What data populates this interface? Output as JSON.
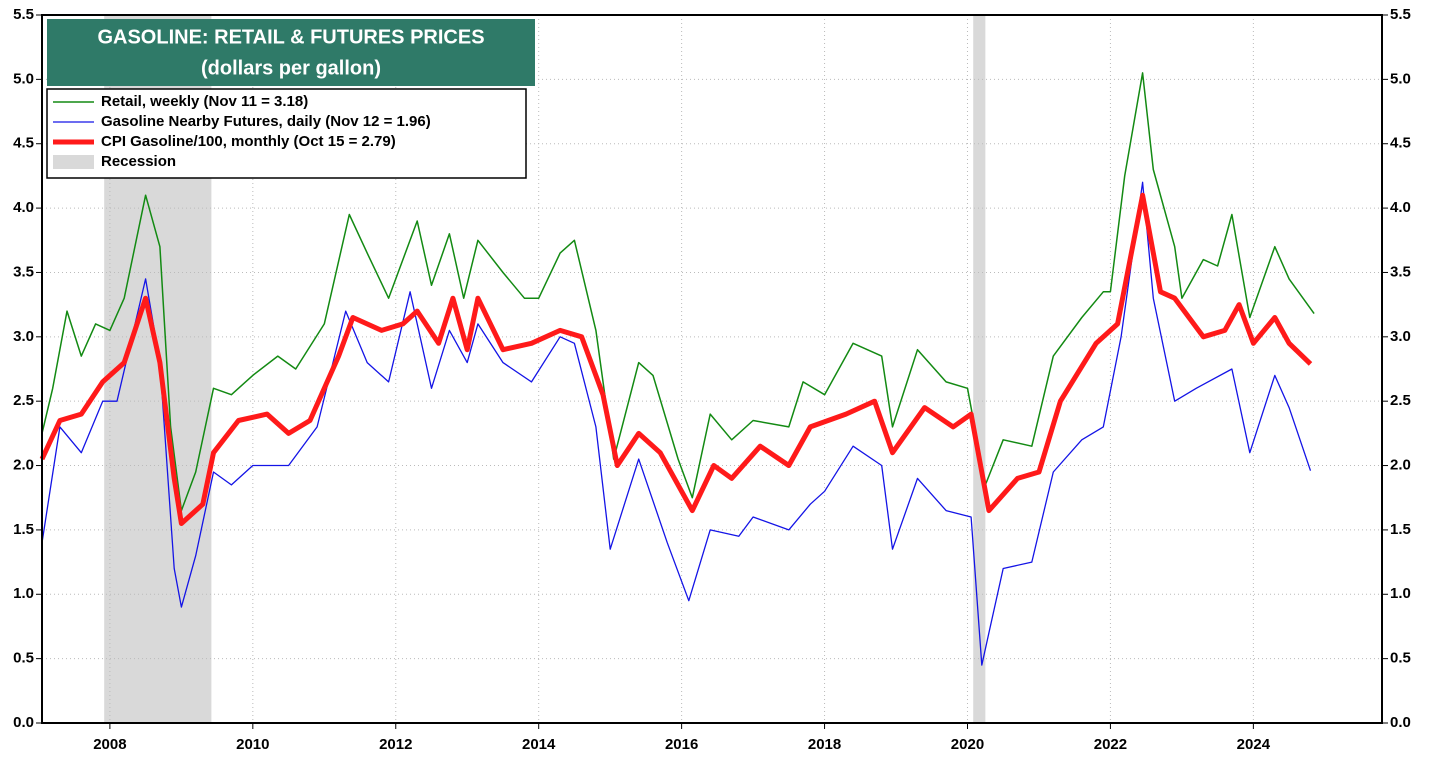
{
  "chart_data": {
    "type": "line",
    "title": "GASOLINE: RETAIL & FUTURES PRICES",
    "subtitle": "(dollars per gallon)",
    "xlim": [
      2007.05,
      2025.8
    ],
    "xticks": [
      2008,
      2010,
      2012,
      2014,
      2016,
      2018,
      2020,
      2022,
      2024
    ],
    "ylim": [
      0,
      5.5
    ],
    "yticks": [
      {
        "value": 0,
        "label": "0.0"
      },
      0.5,
      {
        "value": 1,
        "label": "1.0"
      },
      1.5,
      {
        "value": 2,
        "label": "2.0"
      },
      2.5,
      {
        "value": 3,
        "label": "3.0"
      },
      3.5,
      {
        "value": 4,
        "label": "4.0"
      },
      4.5,
      {
        "value": 5,
        "label": "5.0"
      },
      5.5
    ],
    "grid": true,
    "legend": "top-left",
    "recession_label": "Recession",
    "recession_color": "#d9d9d9",
    "recessions": [
      [
        2007.92,
        2009.42
      ],
      [
        2020.08,
        2020.25
      ]
    ],
    "series": [
      {
        "name": "Retail, weekly (Nov 11 = 3.18)",
        "color": "#138a13",
        "width": 1.5,
        "x": [
          2007.05,
          2007.2,
          2007.4,
          2007.6,
          2007.8,
          2008.0,
          2008.2,
          2008.5,
          2008.7,
          2008.85,
          2009.0,
          2009.2,
          2009.45,
          2009.7,
          2010.0,
          2010.35,
          2010.6,
          2011.0,
          2011.35,
          2011.6,
          2011.9,
          2012.3,
          2012.5,
          2012.75,
          2012.95,
          2013.15,
          2013.5,
          2013.8,
          2014.0,
          2014.3,
          2014.5,
          2014.8,
          2015.05,
          2015.4,
          2015.6,
          2015.95,
          2016.15,
          2016.4,
          2016.7,
          2017.0,
          2017.5,
          2017.7,
          2018.0,
          2018.4,
          2018.8,
          2018.95,
          2019.3,
          2019.7,
          2020.0,
          2020.25,
          2020.5,
          2020.9,
          2021.2,
          2021.6,
          2021.9,
          2022.0,
          2022.2,
          2022.45,
          2022.6,
          2022.9,
          2023.0,
          2023.3,
          2023.5,
          2023.7,
          2023.95,
          2024.3,
          2024.5,
          2024.85
        ],
        "values": [
          2.25,
          2.6,
          3.2,
          2.85,
          3.1,
          3.05,
          3.3,
          4.1,
          3.7,
          2.3,
          1.65,
          1.95,
          2.6,
          2.55,
          2.7,
          2.85,
          2.75,
          3.1,
          3.95,
          3.65,
          3.3,
          3.9,
          3.4,
          3.8,
          3.3,
          3.75,
          3.5,
          3.3,
          3.3,
          3.65,
          3.75,
          3.05,
          2.05,
          2.8,
          2.7,
          2.05,
          1.75,
          2.4,
          2.2,
          2.35,
          2.3,
          2.65,
          2.55,
          2.95,
          2.85,
          2.3,
          2.9,
          2.65,
          2.6,
          1.85,
          2.2,
          2.15,
          2.85,
          3.15,
          3.35,
          3.35,
          4.25,
          5.05,
          4.3,
          3.7,
          3.3,
          3.6,
          3.55,
          3.95,
          3.15,
          3.7,
          3.45,
          3.18
        ]
      },
      {
        "name": "Gasoline Nearby Futures, daily (Nov 12 = 1.96)",
        "color": "#1414e6",
        "width": 1.3,
        "x": [
          2007.05,
          2007.3,
          2007.6,
          2007.9,
          2008.1,
          2008.5,
          2008.7,
          2008.9,
          2009.0,
          2009.2,
          2009.45,
          2009.7,
          2010.0,
          2010.5,
          2010.9,
          2011.3,
          2011.6,
          2011.9,
          2012.2,
          2012.5,
          2012.75,
          2013.0,
          2013.15,
          2013.5,
          2013.9,
          2014.3,
          2014.5,
          2014.8,
          2015.0,
          2015.4,
          2015.8,
          2016.1,
          2016.4,
          2016.8,
          2017.0,
          2017.5,
          2017.8,
          2018.0,
          2018.4,
          2018.8,
          2018.95,
          2019.3,
          2019.7,
          2020.05,
          2020.2,
          2020.3,
          2020.5,
          2020.9,
          2021.2,
          2021.6,
          2021.9,
          2022.15,
          2022.45,
          2022.6,
          2022.9,
          2023.2,
          2023.7,
          2023.95,
          2024.3,
          2024.5,
          2024.8
        ],
        "values": [
          1.4,
          2.3,
          2.1,
          2.5,
          2.5,
          3.45,
          2.8,
          1.2,
          0.9,
          1.3,
          1.95,
          1.85,
          2.0,
          2.0,
          2.3,
          3.2,
          2.8,
          2.65,
          3.35,
          2.6,
          3.05,
          2.8,
          3.1,
          2.8,
          2.65,
          3.0,
          2.95,
          2.3,
          1.35,
          2.05,
          1.4,
          0.95,
          1.5,
          1.45,
          1.6,
          1.5,
          1.7,
          1.8,
          2.15,
          2.0,
          1.35,
          1.9,
          1.65,
          1.6,
          0.45,
          0.7,
          1.2,
          1.25,
          1.95,
          2.2,
          2.3,
          3.0,
          4.2,
          3.3,
          2.5,
          2.6,
          2.75,
          2.1,
          2.7,
          2.45,
          1.96
        ]
      },
      {
        "name": "CPI Gasoline/100, monthly (Oct 15 = 2.79)",
        "color": "#ff1a1a",
        "width": 5,
        "x": [
          2007.05,
          2007.3,
          2007.6,
          2007.9,
          2008.2,
          2008.5,
          2008.7,
          2008.9,
          2009.0,
          2009.3,
          2009.45,
          2009.8,
          2010.2,
          2010.5,
          2010.8,
          2011.2,
          2011.4,
          2011.8,
          2012.1,
          2012.3,
          2012.6,
          2012.8,
          2013.0,
          2013.15,
          2013.5,
          2013.9,
          2014.3,
          2014.6,
          2014.9,
          2015.1,
          2015.4,
          2015.7,
          2016.15,
          2016.45,
          2016.7,
          2017.1,
          2017.5,
          2017.8,
          2018.3,
          2018.7,
          2018.95,
          2019.4,
          2019.8,
          2020.05,
          2020.3,
          2020.7,
          2021.0,
          2021.3,
          2021.8,
          2022.1,
          2022.45,
          2022.7,
          2022.9,
          2023.3,
          2023.6,
          2023.8,
          2024.0,
          2024.3,
          2024.5,
          2024.8
        ],
        "values": [
          2.05,
          2.35,
          2.4,
          2.65,
          2.8,
          3.3,
          2.8,
          1.9,
          1.55,
          1.7,
          2.1,
          2.35,
          2.4,
          2.25,
          2.35,
          2.85,
          3.15,
          3.05,
          3.1,
          3.2,
          2.95,
          3.3,
          2.9,
          3.3,
          2.9,
          2.95,
          3.05,
          3.0,
          2.55,
          2.0,
          2.25,
          2.1,
          1.65,
          2.0,
          1.9,
          2.15,
          2.0,
          2.3,
          2.4,
          2.5,
          2.1,
          2.45,
          2.3,
          2.4,
          1.65,
          1.9,
          1.95,
          2.5,
          2.95,
          3.1,
          4.1,
          3.35,
          3.3,
          3.0,
          3.05,
          3.25,
          2.95,
          3.15,
          2.95,
          2.79
        ]
      }
    ]
  }
}
